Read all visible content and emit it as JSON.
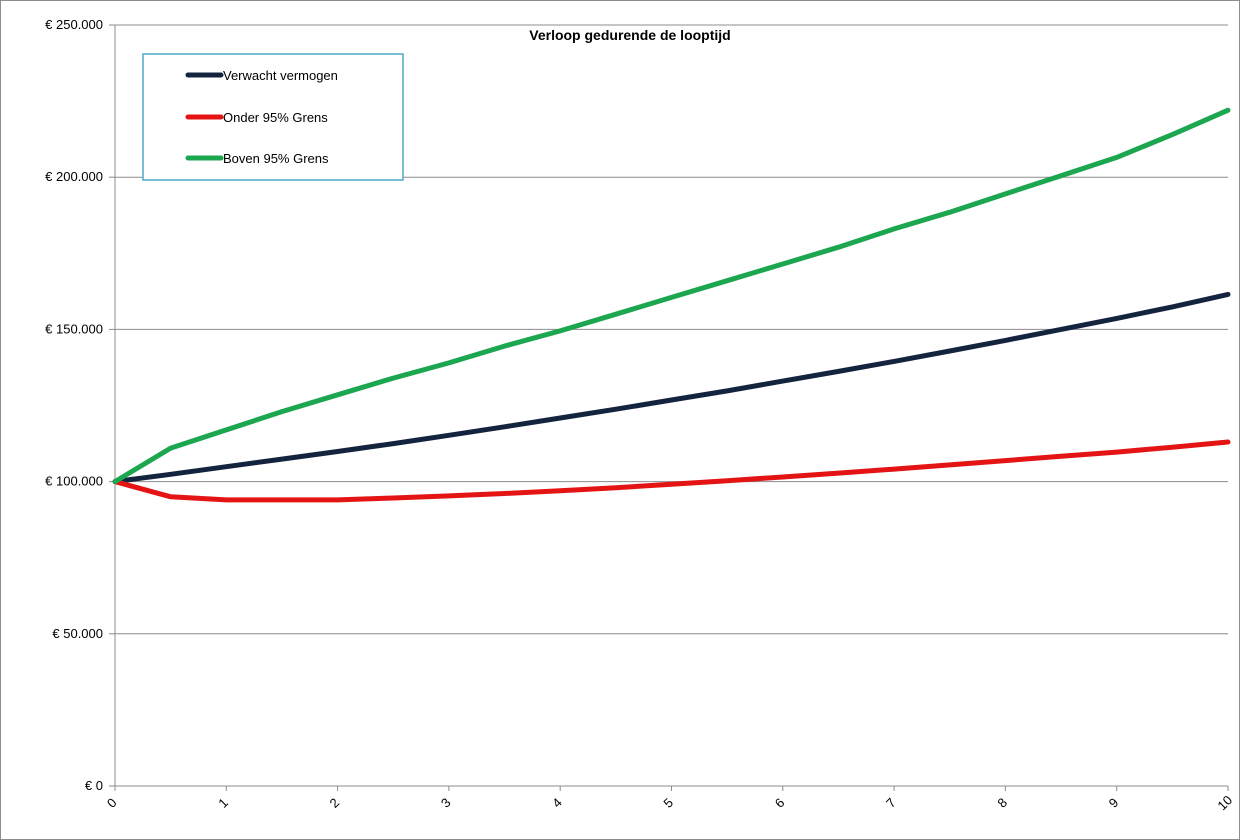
{
  "chart_data": {
    "type": "line",
    "title": "Verloop gedurende de looptijd",
    "xlabel": "",
    "ylabel": "",
    "x": [
      0,
      0.5,
      1,
      1.5,
      2,
      2.5,
      3,
      3.5,
      4,
      4.5,
      5,
      5.5,
      6,
      6.5,
      7,
      7.5,
      8,
      8.5,
      9,
      9.5,
      10
    ],
    "x_ticks": [
      "0",
      "1",
      "2",
      "3",
      "4",
      "5",
      "6",
      "7",
      "8",
      "9",
      "10"
    ],
    "xlim": [
      0,
      10
    ],
    "ylim": [
      0,
      250000
    ],
    "y_ticks": [
      "€ 0",
      "€ 50.000",
      "€ 100.000",
      "€ 150.000",
      "€ 200.000",
      "€ 250.000"
    ],
    "grid": true,
    "legend_position": "top-left",
    "series": [
      {
        "name": "Verwacht vermogen",
        "color": "#14243e",
        "values": [
          100000,
          102400,
          104900,
          107400,
          109900,
          112500,
          115200,
          118000,
          120900,
          123800,
          126800,
          129800,
          133000,
          136200,
          139500,
          142900,
          146400,
          150000,
          153600,
          157400,
          161500
        ]
      },
      {
        "name": "Onder 95% Grens",
        "color": "#e41414",
        "values": [
          100000,
          95000,
          94000,
          94000,
          94000,
          94600,
          95300,
          96100,
          97000,
          98000,
          99100,
          100300,
          101500,
          102800,
          104100,
          105500,
          106900,
          108300,
          109700,
          111300,
          113000
        ]
      },
      {
        "name": "Boven 95% Grens",
        "color": "#1da650",
        "values": [
          100000,
          111000,
          117000,
          123000,
          128500,
          134000,
          139000,
          144500,
          149500,
          155000,
          160500,
          166000,
          171500,
          177000,
          183000,
          188500,
          194500,
          200500,
          206500,
          214000,
          222000
        ]
      }
    ]
  }
}
